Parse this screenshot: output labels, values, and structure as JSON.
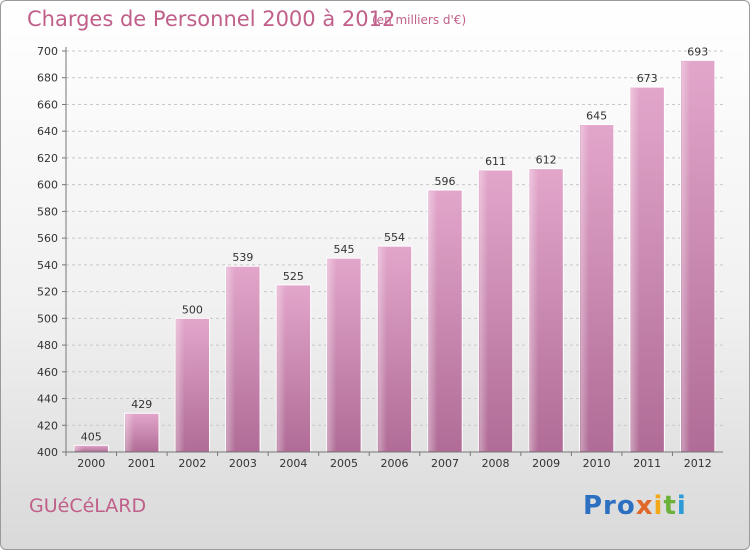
{
  "chart_data": {
    "type": "bar",
    "title": "Charges de Personnel 2000 à 2012",
    "subtitle": "(en milliers d'€)",
    "categories": [
      "2000",
      "2001",
      "2002",
      "2003",
      "2004",
      "2005",
      "2006",
      "2007",
      "2008",
      "2009",
      "2010",
      "2011",
      "2012"
    ],
    "values": [
      405,
      429,
      500,
      539,
      525,
      545,
      554,
      596,
      611,
      612,
      645,
      673,
      693
    ],
    "ylim": [
      400,
      700
    ],
    "yticks": [
      400,
      420,
      440,
      460,
      480,
      500,
      520,
      540,
      560,
      580,
      600,
      620,
      640,
      660,
      680,
      700
    ],
    "grid": true,
    "bar_color": "#d98ab7"
  },
  "footer": {
    "town": "GUéCéLARD",
    "logo": [
      "Pro",
      "x",
      "i",
      "t",
      "i"
    ]
  }
}
